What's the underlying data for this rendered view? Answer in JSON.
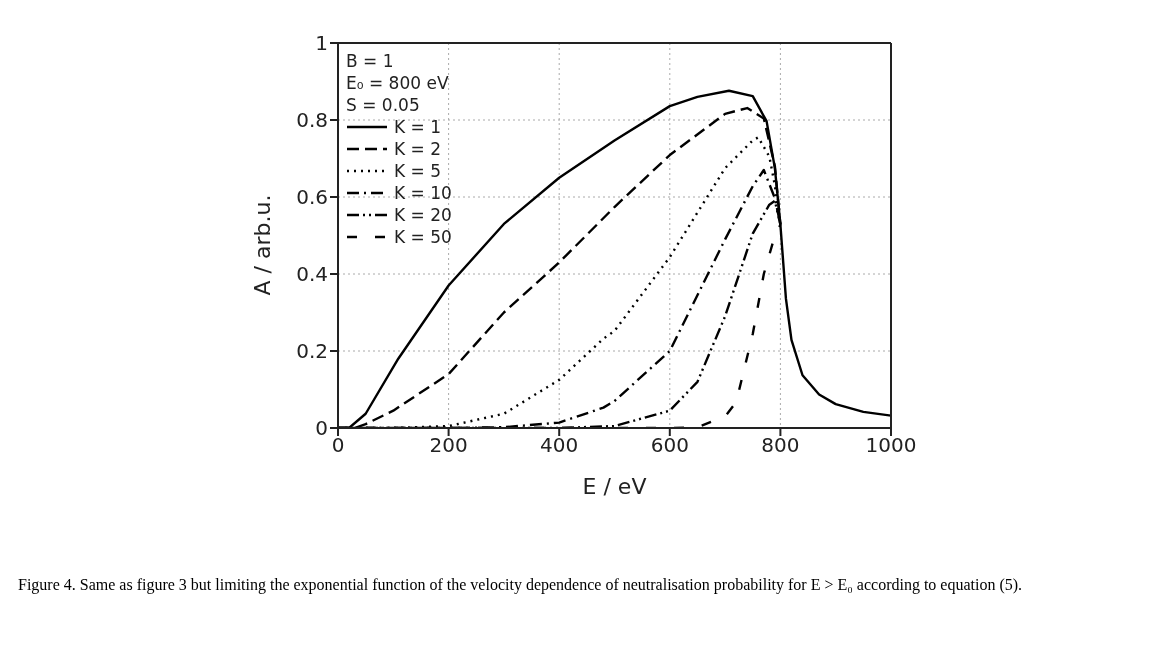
{
  "chart_data": {
    "type": "line",
    "xlabel": "E / eV",
    "ylabel": "A / arb.u.",
    "xlim": [
      0,
      1000
    ],
    "xticks": [
      0,
      200,
      400,
      600,
      800,
      1000
    ],
    "ylim": [
      0,
      1
    ],
    "yticks": [
      0,
      0.2,
      0.4,
      0.6,
      0.8,
      1
    ],
    "grid": true,
    "legend": "top left",
    "marker": "none",
    "annotations": [
      "B = 1",
      "E₀ = 800 eV",
      "S = 0.05",
      "Figure 4. Same as figure 3 but limiting the exponential function of the velocity dependence of neutralisation probability for E > E₀ according to equation (5)."
    ],
    "series": [
      {
        "name": "K = 1",
        "color": "#000000",
        "line_style": "solid",
        "x": [
          0,
          20,
          50,
          109,
          200,
          300,
          400,
          500,
          600,
          650,
          707,
          750,
          775,
          790,
          800,
          810,
          820,
          840,
          870,
          900,
          950,
          1000
        ],
        "values": [
          0,
          0,
          0.037,
          0.18,
          0.37,
          0.53,
          0.65,
          0.747,
          0.836,
          0.86,
          0.876,
          0.862,
          0.797,
          0.675,
          0.528,
          0.336,
          0.229,
          0.137,
          0.087,
          0.062,
          0.042,
          0.032
        ]
      },
      {
        "name": "K = 2",
        "color": "#000000",
        "line_style": "dashed",
        "x": [
          0,
          30,
          50,
          100,
          200,
          300,
          400,
          500,
          600,
          700,
          740,
          770,
          790,
          800
        ],
        "values": [
          0,
          0,
          0.01,
          0.045,
          0.14,
          0.3,
          0.43,
          0.574,
          0.709,
          0.816,
          0.831,
          0.804,
          0.68,
          0.528
        ]
      },
      {
        "name": "K = 5",
        "color": "#000000",
        "line_style": "dotted",
        "x": [
          0,
          100,
          200,
          300,
          400,
          480,
          500,
          600,
          700,
          750,
          760,
          780,
          790,
          800
        ],
        "values": [
          0,
          0,
          0.005,
          0.037,
          0.125,
          0.232,
          0.252,
          0.444,
          0.675,
          0.747,
          0.755,
          0.705,
          0.63,
          0.528
        ]
      },
      {
        "name": "K = 10",
        "color": "#000000",
        "line_style": "dashdot",
        "x": [
          0,
          200,
          300,
          400,
          480,
          500,
          600,
          700,
          750,
          770,
          790,
          800
        ],
        "values": [
          0,
          0,
          0.002,
          0.014,
          0.053,
          0.07,
          0.2,
          0.49,
          0.628,
          0.67,
          0.597,
          0.528
        ]
      },
      {
        "name": "K = 20",
        "color": "#000000",
        "line_style": "dashdotdot",
        "x": [
          0,
          400,
          500,
          600,
          650,
          700,
          750,
          780,
          790,
          800
        ],
        "values": [
          0,
          0,
          0.005,
          0.045,
          0.12,
          0.29,
          0.505,
          0.58,
          0.59,
          0.528
        ]
      },
      {
        "name": "K = 50",
        "color": "#000000",
        "line_style": "loosedash",
        "x": [
          0,
          600,
          650,
          700,
          720,
          750,
          770,
          790,
          800
        ],
        "values": [
          0,
          0,
          0.002,
          0.03,
          0.067,
          0.244,
          0.4,
          0.5,
          0.528
        ]
      }
    ]
  }
}
